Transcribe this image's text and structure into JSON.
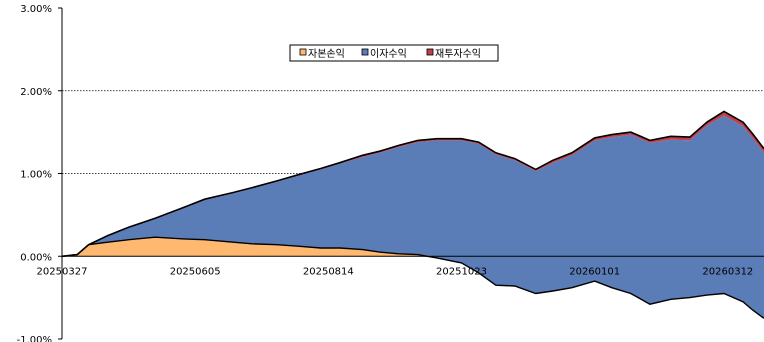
{
  "chart_data": {
    "type": "area",
    "title": "",
    "xlabel": "",
    "ylabel": "",
    "ylim": [
      -1.0,
      3.0
    ],
    "y_ticks": [
      "3.00%",
      "2.00%",
      "1.00%",
      "0.00%",
      "-1.00%"
    ],
    "y_tick_values": [
      3.0,
      2.0,
      1.0,
      0.0,
      -1.0
    ],
    "x_range": [
      "20250327",
      "20260331"
    ],
    "x_ticks": [
      "20250327",
      "20250605",
      "20250814",
      "20251023",
      "20260101",
      "20260312"
    ],
    "grid": "horizontal dotted at 1.00% and 2.00%",
    "legend_position": "top-center",
    "legend": [
      "자본손익",
      "이자수익",
      "재투자수익"
    ],
    "colors": {
      "capital_gain": "#ffb870",
      "interest_income": "#5b7db7",
      "reinvestment_income": "#c0404a",
      "total_line": "#000000"
    },
    "series": [
      {
        "name": "자본손익",
        "points": [
          [
            "20250327",
            0.0
          ],
          [
            "20250404",
            0.02
          ],
          [
            "20250410",
            0.14
          ],
          [
            "20250420",
            0.17
          ],
          [
            "20250501",
            0.2
          ],
          [
            "20250515",
            0.23
          ],
          [
            "20250530",
            0.21
          ],
          [
            "20250610",
            0.2
          ],
          [
            "20250625",
            0.17
          ],
          [
            "20250705",
            0.15
          ],
          [
            "20250718",
            0.14
          ],
          [
            "20250730",
            0.12
          ],
          [
            "20250810",
            0.1
          ],
          [
            "20250820",
            0.1
          ],
          [
            "20250901",
            0.08
          ],
          [
            "20250910",
            0.05
          ],
          [
            "20250920",
            0.03
          ],
          [
            "20250930",
            0.02
          ],
          [
            "20251010",
            -0.02
          ],
          [
            "20251023",
            -0.08
          ],
          [
            "20251101",
            -0.2
          ],
          [
            "20251110",
            -0.35
          ],
          [
            "20251120",
            -0.36
          ],
          [
            "20251201",
            -0.45
          ],
          [
            "20251210",
            -0.42
          ],
          [
            "20251220",
            -0.38
          ],
          [
            "20260101",
            -0.3
          ],
          [
            "20260110",
            -0.38
          ],
          [
            "20260120",
            -0.45
          ],
          [
            "20260130",
            -0.58
          ],
          [
            "20260210",
            -0.52
          ],
          [
            "20260220",
            -0.5
          ],
          [
            "20260301",
            -0.47
          ],
          [
            "20260310",
            -0.45
          ],
          [
            "20260320",
            -0.55
          ],
          [
            "20260325",
            -0.65
          ],
          [
            "20260331",
            -0.75
          ]
        ]
      },
      {
        "name": "이자수익",
        "points": [
          [
            "20250327",
            0.0
          ],
          [
            "20250404",
            0.02
          ],
          [
            "20250410",
            0.14
          ],
          [
            "20250420",
            0.25
          ],
          [
            "20250501",
            0.35
          ],
          [
            "20250515",
            0.45
          ],
          [
            "20250530",
            0.58
          ],
          [
            "20250610",
            0.68
          ],
          [
            "20250625",
            0.76
          ],
          [
            "20250705",
            0.82
          ],
          [
            "20250718",
            0.9
          ],
          [
            "20250730",
            0.98
          ],
          [
            "20250810",
            1.05
          ],
          [
            "20250820",
            1.12
          ],
          [
            "20250901",
            1.2
          ],
          [
            "20250910",
            1.25
          ],
          [
            "20250920",
            1.32
          ],
          [
            "20250930",
            1.38
          ],
          [
            "20251010",
            1.42
          ],
          [
            "20251023",
            1.48
          ],
          [
            "20251101",
            1.56
          ],
          [
            "20251110",
            1.58
          ],
          [
            "20251120",
            1.52
          ],
          [
            "20251201",
            1.48
          ],
          [
            "20251210",
            1.55
          ],
          [
            "20251220",
            1.6
          ],
          [
            "20260101",
            1.7
          ],
          [
            "20260110",
            1.82
          ],
          [
            "20260120",
            1.92
          ],
          [
            "20260130",
            1.95
          ],
          [
            "20260210",
            1.93
          ],
          [
            "20260220",
            1.9
          ],
          [
            "20260301",
            2.05
          ],
          [
            "20260310",
            2.15
          ],
          [
            "20260320",
            2.12
          ],
          [
            "20260325",
            2.08
          ],
          [
            "20260331",
            2.0
          ]
        ]
      },
      {
        "name": "재투자수익",
        "points": [
          [
            "20250327",
            0.0
          ],
          [
            "20250404",
            0.0
          ],
          [
            "20250410",
            0.0
          ],
          [
            "20250420",
            0.0
          ],
          [
            "20250501",
            0.0
          ],
          [
            "20250515",
            0.01
          ],
          [
            "20250530",
            0.01
          ],
          [
            "20250610",
            0.01
          ],
          [
            "20250625",
            0.01
          ],
          [
            "20250705",
            0.01
          ],
          [
            "20250718",
            0.01
          ],
          [
            "20250730",
            0.01
          ],
          [
            "20250810",
            0.01
          ],
          [
            "20250820",
            0.01
          ],
          [
            "20250901",
            0.02
          ],
          [
            "20250910",
            0.02
          ],
          [
            "20250920",
            0.02
          ],
          [
            "20250930",
            0.02
          ],
          [
            "20251010",
            0.02
          ],
          [
            "20251023",
            0.02
          ],
          [
            "20251101",
            0.02
          ],
          [
            "20251110",
            0.02
          ],
          [
            "20251120",
            0.02
          ],
          [
            "20251201",
            0.02
          ],
          [
            "20251210",
            0.03
          ],
          [
            "20251220",
            0.03
          ],
          [
            "20260101",
            0.03
          ],
          [
            "20260110",
            0.03
          ],
          [
            "20260120",
            0.03
          ],
          [
            "20260130",
            0.03
          ],
          [
            "20260210",
            0.04
          ],
          [
            "20260220",
            0.04
          ],
          [
            "20260301",
            0.04
          ],
          [
            "20260310",
            0.05
          ],
          [
            "20260320",
            0.05
          ],
          [
            "20260325",
            0.05
          ],
          [
            "20260331",
            0.05
          ]
        ]
      }
    ]
  }
}
